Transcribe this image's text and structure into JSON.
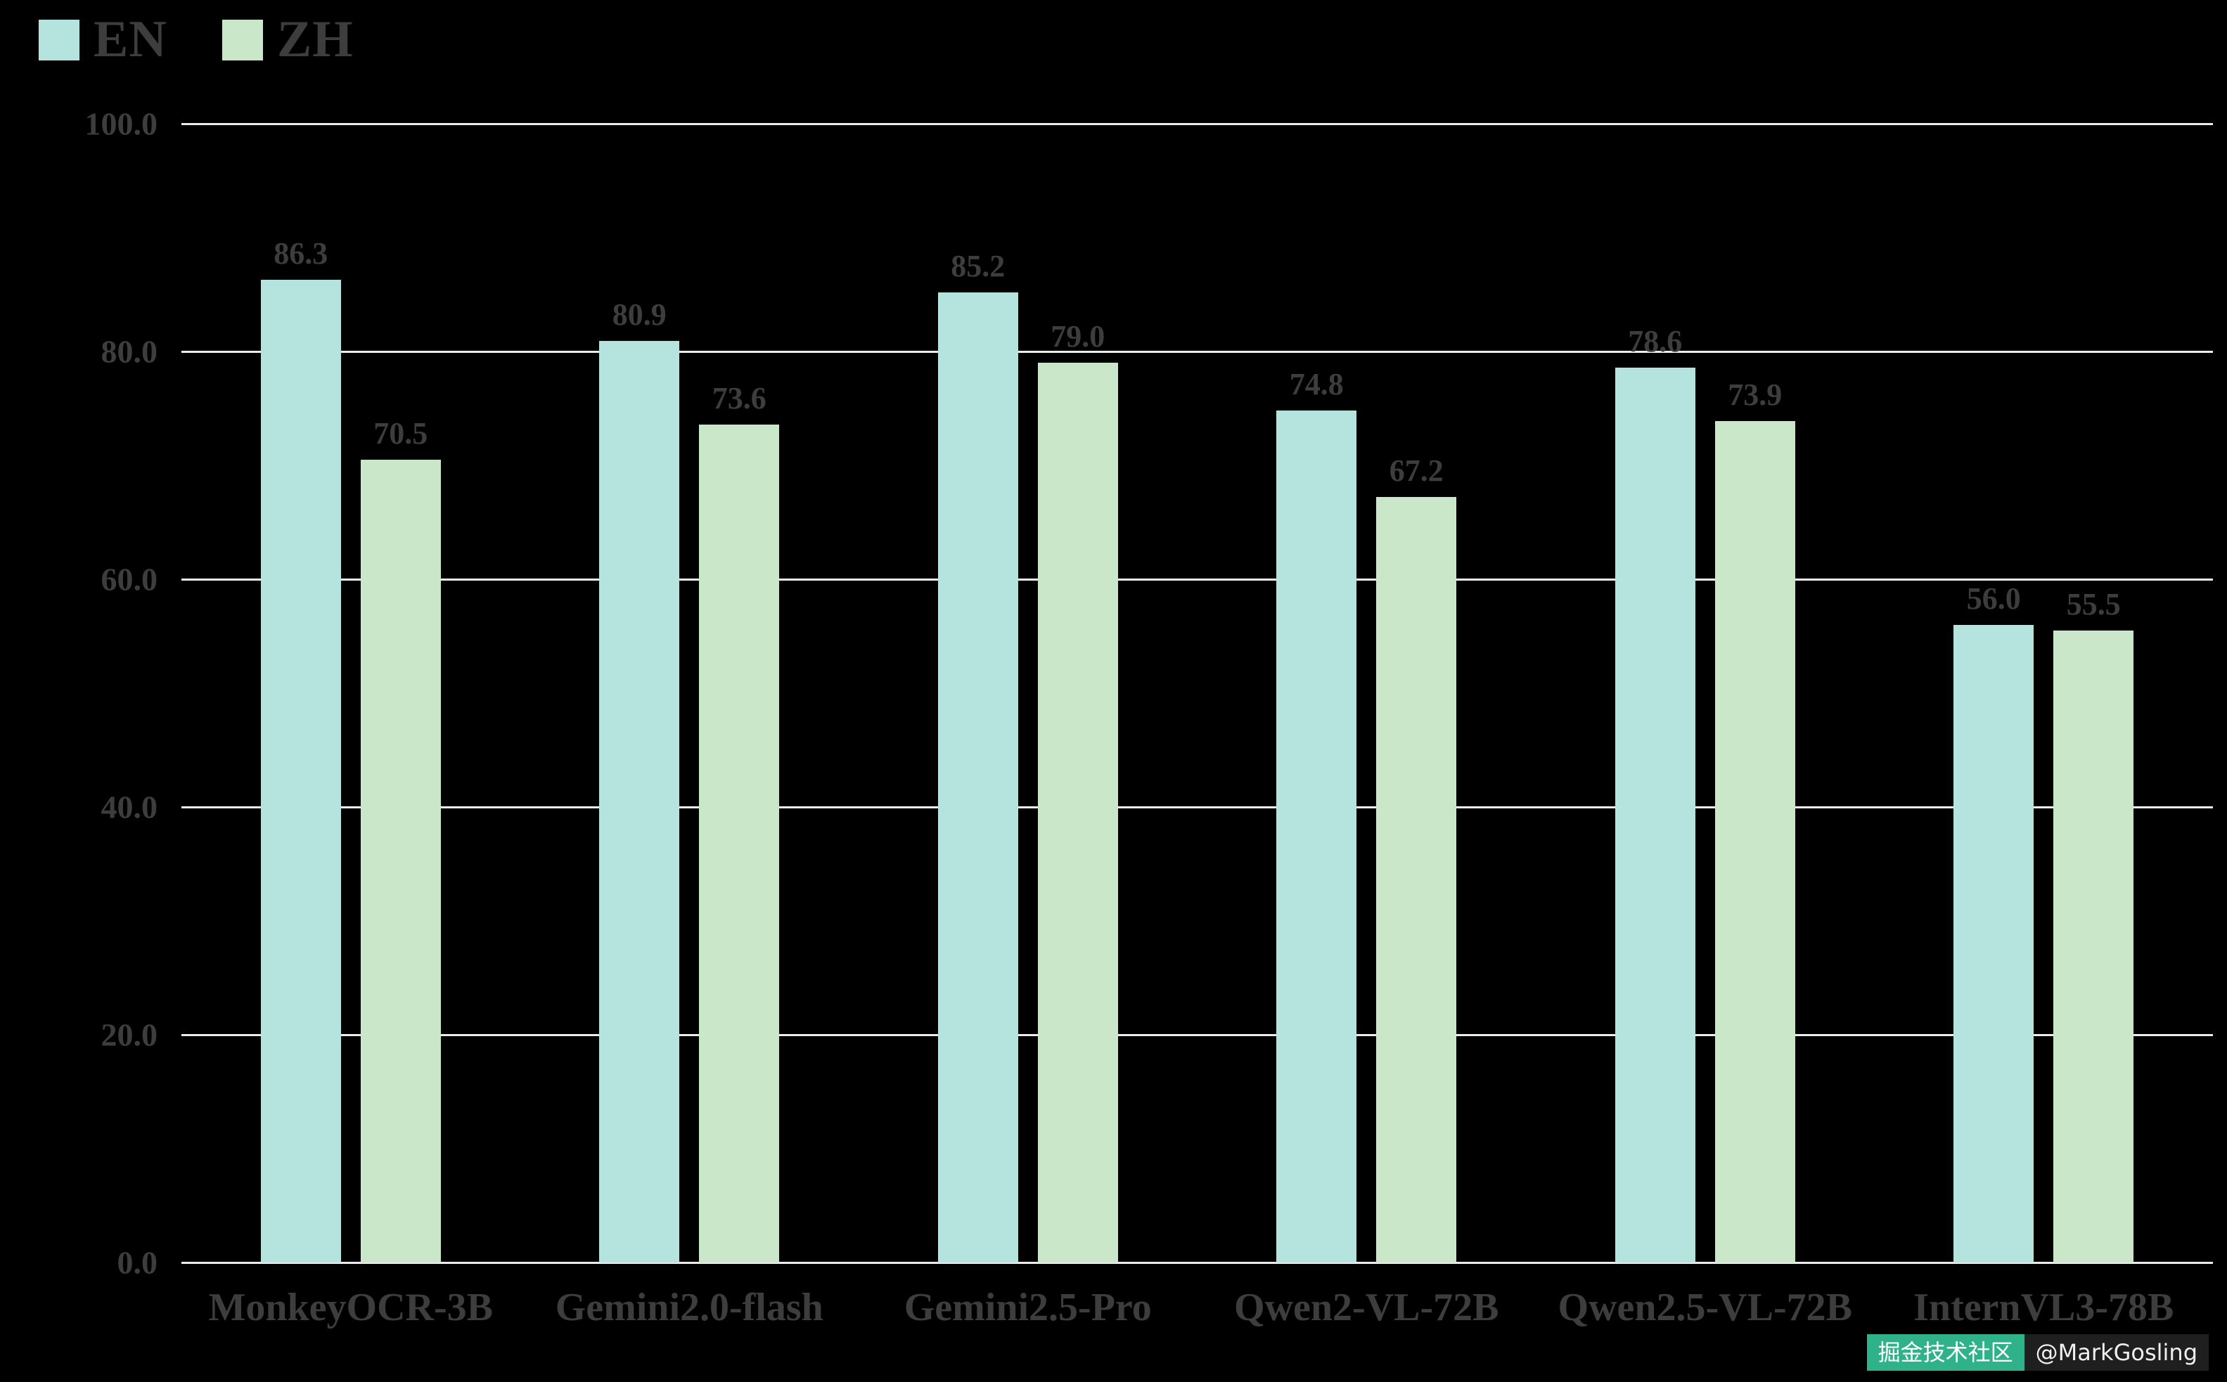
{
  "colors": {
    "background": "#000000",
    "text": "#3d3d3d",
    "gridline": "#ececec",
    "series_en": "#b5e3de",
    "series_zh": "#cbe7c9",
    "watermark_badge": "#2fb28a"
  },
  "chart_data": {
    "type": "bar",
    "title": "",
    "xlabel": "",
    "ylabel": "",
    "categories": [
      "MonkeyOCR-3B",
      "Gemini2.0-flash",
      "Gemini2.5-Pro",
      "Qwen2-VL-72B",
      "Qwen2.5-VL-72B",
      "InternVL3-78B"
    ],
    "series": [
      {
        "name": "EN",
        "color": "#b5e3de",
        "values": [
          86.3,
          80.9,
          85.2,
          74.8,
          78.6,
          56.0
        ]
      },
      {
        "name": "ZH",
        "color": "#cbe7c9",
        "values": [
          70.5,
          73.6,
          79.0,
          67.2,
          73.9,
          55.5
        ]
      }
    ],
    "ylim": [
      0,
      100
    ],
    "yticks": [
      100,
      80,
      60,
      40,
      20,
      0
    ],
    "ytick_labels": [
      "100.0",
      "80.0",
      "60.0",
      "40.0",
      "20.0",
      "0.0"
    ],
    "grid": true,
    "legend_position": "top-left",
    "value_label_decimals": 1
  },
  "watermark": {
    "badge": "掘金技术社区",
    "handle": "@MarkGosling"
  }
}
